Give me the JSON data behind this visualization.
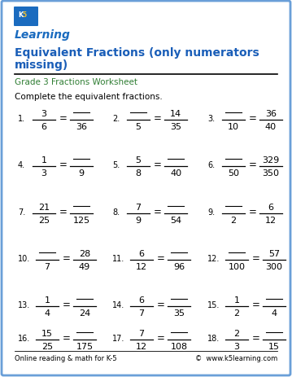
{
  "title_line1": "Equivalent Fractions (only numerators",
  "title_line2": "missing)",
  "subtitle": "Grade 3 Fractions Worksheet",
  "instruction": "Complete the equivalent fractions.",
  "footer_left": "Online reading & math for K-5",
  "footer_right": "©  www.k5learning.com",
  "title_color": "#1a5eb8",
  "subtitle_color": "#2e7d32",
  "border_color": "#6a9fd8",
  "background_color": "#ffffff",
  "text_color": "#333333",
  "problems": [
    {
      "num": "1.",
      "n1": "3",
      "d1": "6",
      "n2": "",
      "d2": "36"
    },
    {
      "num": "2.",
      "n1": "",
      "d1": "5",
      "n2": "14",
      "d2": "35"
    },
    {
      "num": "3.",
      "n1": "",
      "d1": "10",
      "n2": "36",
      "d2": "40"
    },
    {
      "num": "4.",
      "n1": "1",
      "d1": "3",
      "n2": "",
      "d2": "9"
    },
    {
      "num": "5.",
      "n1": "5",
      "d1": "8",
      "n2": "",
      "d2": "40"
    },
    {
      "num": "6.",
      "n1": "",
      "d1": "50",
      "n2": "329",
      "d2": "350"
    },
    {
      "num": "7.",
      "n1": "21",
      "d1": "25",
      "n2": "",
      "d2": "125"
    },
    {
      "num": "8.",
      "n1": "7",
      "d1": "9",
      "n2": "",
      "d2": "54"
    },
    {
      "num": "9.",
      "n1": "",
      "d1": "2",
      "n2": "6",
      "d2": "12"
    },
    {
      "num": "10.",
      "n1": "",
      "d1": "7",
      "n2": "28",
      "d2": "49"
    },
    {
      "num": "11.",
      "n1": "6",
      "d1": "12",
      "n2": "",
      "d2": "96"
    },
    {
      "num": "12.",
      "n1": "",
      "d1": "100",
      "n2": "57",
      "d2": "300"
    },
    {
      "num": "13.",
      "n1": "1",
      "d1": "4",
      "n2": "",
      "d2": "24"
    },
    {
      "num": "14.",
      "n1": "6",
      "d1": "7",
      "n2": "",
      "d2": "35"
    },
    {
      "num": "15.",
      "n1": "1",
      "d1": "2",
      "n2": "",
      "d2": "4"
    },
    {
      "num": "16.",
      "n1": "15",
      "d1": "25",
      "n2": "",
      "d2": "175"
    },
    {
      "num": "17.",
      "n1": "7",
      "d1": "12",
      "n2": "",
      "d2": "108"
    },
    {
      "num": "18.",
      "n1": "2",
      "d1": "3",
      "n2": "",
      "d2": "15"
    }
  ]
}
